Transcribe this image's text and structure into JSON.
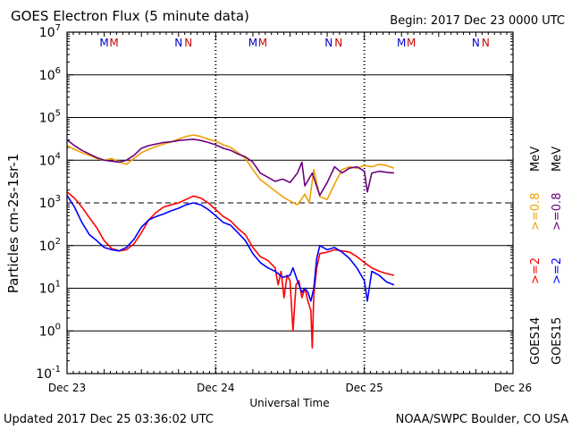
{
  "title": "GOES Electron Flux (5 minute data)",
  "begin_label": "Begin: 2017 Dec 23 0000 UTC",
  "updated_label": "Updated 2017 Dec 25 03:36:02 UTC",
  "source_label": "NOAA/SWPC Boulder, CO USA",
  "colors": {
    "goes14_gt2": "#ff0000",
    "goes14_gt08": "#f0a000",
    "goes15_gt2": "#0000ff",
    "goes15_gt08": "#6a0080",
    "marker_m": "#0000cc",
    "marker_m2": "#cc0000"
  },
  "chart_data": {
    "type": "line",
    "title": "GOES Electron Flux (5 minute data)",
    "xlabel": "Universal Time",
    "ylabel": "Particles cm-2s-1sr-1",
    "y_scale": "log",
    "ylim": [
      0.1,
      10000000
    ],
    "xlim_days": [
      0,
      3
    ],
    "x_ticks": [
      {
        "day": 0,
        "label": "Dec 23"
      },
      {
        "day": 1,
        "label": "Dec 24"
      },
      {
        "day": 2,
        "label": "Dec 25"
      },
      {
        "day": 3,
        "label": "Dec 26"
      }
    ],
    "y_ticks": [
      {
        "exp": -1,
        "base": "10",
        "sup": "-1"
      },
      {
        "exp": 0,
        "base": "10",
        "sup": "0"
      },
      {
        "exp": 1,
        "base": "10",
        "sup": "1"
      },
      {
        "exp": 2,
        "base": "10",
        "sup": "2"
      },
      {
        "exp": 3,
        "base": "10",
        "sup": "3"
      },
      {
        "exp": 4,
        "base": "10",
        "sup": "4"
      },
      {
        "exp": 5,
        "base": "10",
        "sup": "5"
      },
      {
        "exp": 6,
        "base": "10",
        "sup": "6"
      },
      {
        "exp": 7,
        "base": "10",
        "sup": "7"
      }
    ],
    "alert_threshold": 1000,
    "top_markers": [
      {
        "day": 0.28,
        "labels": [
          "M",
          "M"
        ]
      },
      {
        "day": 0.78,
        "labels": [
          "N",
          "N"
        ]
      },
      {
        "day": 1.28,
        "labels": [
          "M",
          "M"
        ]
      },
      {
        "day": 1.79,
        "labels": [
          "N",
          "N"
        ]
      },
      {
        "day": 2.28,
        "labels": [
          "M",
          "M"
        ]
      },
      {
        "day": 2.78,
        "labels": [
          "N",
          "N"
        ]
      }
    ],
    "legend": {
      "goes14": "GOES14",
      "goes15": "GOES15",
      "gt2": ">=2",
      "gt08": ">=0.8",
      "unit": "MeV"
    },
    "series": [
      {
        "name": "GOES14 >=0.8 MeV",
        "color": "#f0a000",
        "points": [
          [
            0.0,
            22000
          ],
          [
            0.05,
            18000
          ],
          [
            0.1,
            15000
          ],
          [
            0.15,
            13000
          ],
          [
            0.2,
            11000
          ],
          [
            0.25,
            10000
          ],
          [
            0.3,
            11000
          ],
          [
            0.35,
            9000
          ],
          [
            0.4,
            8000
          ],
          [
            0.45,
            11000
          ],
          [
            0.5,
            15000
          ],
          [
            0.55,
            18000
          ],
          [
            0.6,
            21000
          ],
          [
            0.65,
            24000
          ],
          [
            0.7,
            27000
          ],
          [
            0.75,
            31000
          ],
          [
            0.8,
            36000
          ],
          [
            0.85,
            39000
          ],
          [
            0.9,
            36000
          ],
          [
            0.95,
            31000
          ],
          [
            1.0,
            28000
          ],
          [
            1.05,
            23000
          ],
          [
            1.1,
            20000
          ],
          [
            1.15,
            15000
          ],
          [
            1.2,
            11000
          ],
          [
            1.25,
            6000
          ],
          [
            1.3,
            3500
          ],
          [
            1.35,
            2600
          ],
          [
            1.4,
            1900
          ],
          [
            1.45,
            1400
          ],
          [
            1.5,
            1100
          ],
          [
            1.55,
            900
          ],
          [
            1.6,
            1600
          ],
          [
            1.63,
            1000
          ],
          [
            1.66,
            6000
          ],
          [
            1.7,
            1400
          ],
          [
            1.75,
            1200
          ],
          [
            1.8,
            2800
          ],
          [
            1.85,
            6000
          ],
          [
            1.9,
            7000
          ],
          [
            1.95,
            6500
          ],
          [
            2.0,
            7500
          ],
          [
            2.05,
            7000
          ],
          [
            2.1,
            8000
          ],
          [
            2.15,
            7500
          ],
          [
            2.2,
            6500
          ]
        ]
      },
      {
        "name": "GOES15 >=0.8 MeV",
        "color": "#6a0080",
        "points": [
          [
            0.0,
            30000
          ],
          [
            0.05,
            22000
          ],
          [
            0.1,
            17000
          ],
          [
            0.15,
            14000
          ],
          [
            0.2,
            11500
          ],
          [
            0.25,
            10000
          ],
          [
            0.3,
            9500
          ],
          [
            0.35,
            9000
          ],
          [
            0.4,
            10000
          ],
          [
            0.45,
            13000
          ],
          [
            0.5,
            19000
          ],
          [
            0.55,
            22000
          ],
          [
            0.6,
            24000
          ],
          [
            0.65,
            26000
          ],
          [
            0.7,
            27000
          ],
          [
            0.75,
            29000
          ],
          [
            0.8,
            30000
          ],
          [
            0.85,
            31000
          ],
          [
            0.9,
            29000
          ],
          [
            0.95,
            26000
          ],
          [
            1.0,
            23000
          ],
          [
            1.05,
            19000
          ],
          [
            1.1,
            17000
          ],
          [
            1.15,
            14000
          ],
          [
            1.2,
            12000
          ],
          [
            1.25,
            9000
          ],
          [
            1.3,
            5000
          ],
          [
            1.35,
            4000
          ],
          [
            1.4,
            3200
          ],
          [
            1.45,
            3600
          ],
          [
            1.5,
            3000
          ],
          [
            1.55,
            5000
          ],
          [
            1.58,
            9000
          ],
          [
            1.6,
            2500
          ],
          [
            1.65,
            5000
          ],
          [
            1.7,
            1500
          ],
          [
            1.75,
            3000
          ],
          [
            1.8,
            7000
          ],
          [
            1.85,
            5000
          ],
          [
            1.9,
            6500
          ],
          [
            1.95,
            7000
          ],
          [
            2.0,
            5500
          ],
          [
            2.02,
            1800
          ],
          [
            2.05,
            5000
          ],
          [
            2.1,
            5500
          ],
          [
            2.15,
            5200
          ],
          [
            2.2,
            5000
          ]
        ]
      },
      {
        "name": "GOES14 >=2 MeV",
        "color": "#ff0000",
        "points": [
          [
            0.0,
            1800
          ],
          [
            0.05,
            1300
          ],
          [
            0.1,
            800
          ],
          [
            0.15,
            450
          ],
          [
            0.2,
            260
          ],
          [
            0.25,
            130
          ],
          [
            0.3,
            85
          ],
          [
            0.35,
            75
          ],
          [
            0.4,
            80
          ],
          [
            0.45,
            110
          ],
          [
            0.5,
            200
          ],
          [
            0.55,
            400
          ],
          [
            0.6,
            600
          ],
          [
            0.65,
            800
          ],
          [
            0.7,
            900
          ],
          [
            0.75,
            1000
          ],
          [
            0.8,
            1200
          ],
          [
            0.85,
            1450
          ],
          [
            0.9,
            1300
          ],
          [
            0.95,
            1000
          ],
          [
            1.0,
            700
          ],
          [
            1.05,
            480
          ],
          [
            1.1,
            380
          ],
          [
            1.15,
            250
          ],
          [
            1.2,
            180
          ],
          [
            1.25,
            90
          ],
          [
            1.3,
            55
          ],
          [
            1.35,
            45
          ],
          [
            1.4,
            30
          ],
          [
            1.42,
            12
          ],
          [
            1.44,
            25
          ],
          [
            1.46,
            6
          ],
          [
            1.48,
            20
          ],
          [
            1.5,
            15
          ],
          [
            1.52,
            1.0
          ],
          [
            1.54,
            12
          ],
          [
            1.56,
            15
          ],
          [
            1.58,
            6
          ],
          [
            1.6,
            10
          ],
          [
            1.62,
            5
          ],
          [
            1.64,
            3
          ],
          [
            1.65,
            0.4
          ],
          [
            1.66,
            7
          ],
          [
            1.68,
            30
          ],
          [
            1.7,
            65
          ],
          [
            1.75,
            70
          ],
          [
            1.8,
            80
          ],
          [
            1.85,
            75
          ],
          [
            1.9,
            70
          ],
          [
            1.95,
            55
          ],
          [
            2.0,
            40
          ],
          [
            2.05,
            30
          ],
          [
            2.1,
            25
          ],
          [
            2.15,
            22
          ],
          [
            2.2,
            20
          ]
        ]
      },
      {
        "name": "GOES15 >=2 MeV",
        "color": "#0000ff",
        "points": [
          [
            0.0,
            1500
          ],
          [
            0.05,
            800
          ],
          [
            0.1,
            350
          ],
          [
            0.15,
            180
          ],
          [
            0.2,
            130
          ],
          [
            0.25,
            90
          ],
          [
            0.3,
            80
          ],
          [
            0.35,
            75
          ],
          [
            0.4,
            90
          ],
          [
            0.45,
            140
          ],
          [
            0.5,
            270
          ],
          [
            0.55,
            400
          ],
          [
            0.6,
            480
          ],
          [
            0.65,
            550
          ],
          [
            0.7,
            650
          ],
          [
            0.75,
            750
          ],
          [
            0.8,
            900
          ],
          [
            0.85,
            1000
          ],
          [
            0.9,
            900
          ],
          [
            0.95,
            700
          ],
          [
            1.0,
            500
          ],
          [
            1.05,
            350
          ],
          [
            1.1,
            300
          ],
          [
            1.15,
            200
          ],
          [
            1.2,
            130
          ],
          [
            1.25,
            65
          ],
          [
            1.3,
            40
          ],
          [
            1.35,
            30
          ],
          [
            1.4,
            25
          ],
          [
            1.45,
            18
          ],
          [
            1.5,
            20
          ],
          [
            1.52,
            30
          ],
          [
            1.55,
            15
          ],
          [
            1.58,
            8
          ],
          [
            1.6,
            10
          ],
          [
            1.62,
            8
          ],
          [
            1.64,
            5
          ],
          [
            1.66,
            10
          ],
          [
            1.68,
            50
          ],
          [
            1.7,
            100
          ],
          [
            1.75,
            80
          ],
          [
            1.8,
            90
          ],
          [
            1.85,
            70
          ],
          [
            1.9,
            50
          ],
          [
            1.95,
            30
          ],
          [
            2.0,
            15
          ],
          [
            2.02,
            5
          ],
          [
            2.05,
            25
          ],
          [
            2.1,
            20
          ],
          [
            2.15,
            14
          ],
          [
            2.2,
            12
          ]
        ]
      }
    ]
  }
}
